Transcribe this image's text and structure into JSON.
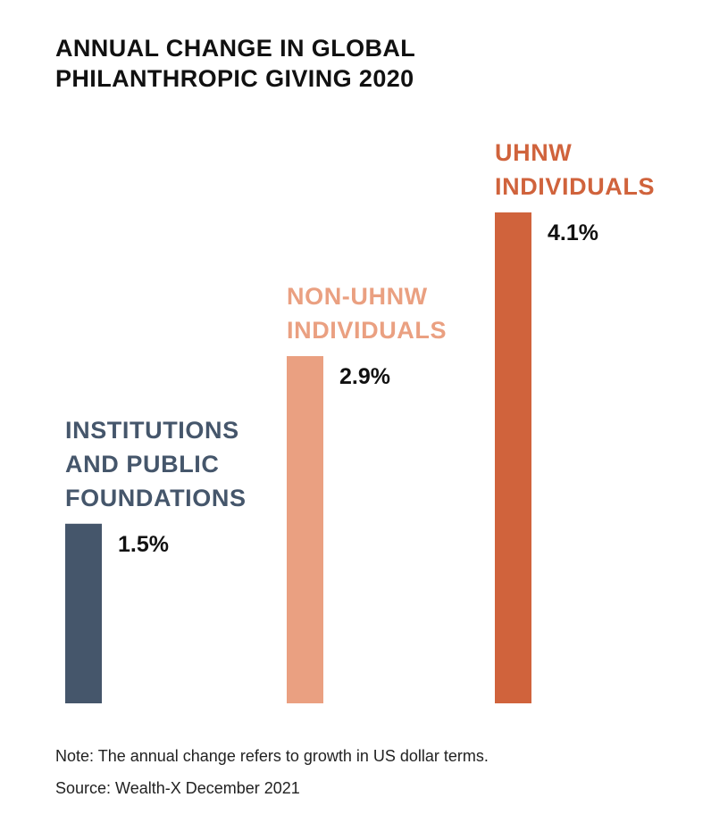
{
  "chart_data": {
    "type": "bar",
    "title": "ANNUAL CHANGE IN GLOBAL PHILANTHROPIC GIVING 2020",
    "title_lines": [
      "ANNUAL CHANGE IN GLOBAL",
      "PHILANTHROPIC GIVING 2020"
    ],
    "categories": [
      "INSTITUTIONS AND PUBLIC FOUNDATIONS",
      "NON-UHNW INDIVIDUALS",
      "UHNW INDIVIDUALS"
    ],
    "category_lines": [
      [
        "INSTITUTIONS",
        "AND PUBLIC",
        "FOUNDATIONS"
      ],
      [
        "NON-UHNW",
        "INDIVIDUALS"
      ],
      [
        "UHNW",
        "INDIVIDUALS"
      ]
    ],
    "values": [
      1.5,
      2.9,
      4.1
    ],
    "value_labels": [
      "1.5%",
      "2.9%",
      "4.1%"
    ],
    "unit": "%",
    "colors": [
      "#45566b",
      "#eaa081",
      "#d0633c"
    ],
    "ylim": [
      0,
      4.1
    ],
    "grid": false,
    "xlabel": "",
    "ylabel": ""
  },
  "footer": {
    "note": "Note: The annual change refers to growth in US dollar terms.",
    "source": "Source: Wealth-X December 2021"
  }
}
